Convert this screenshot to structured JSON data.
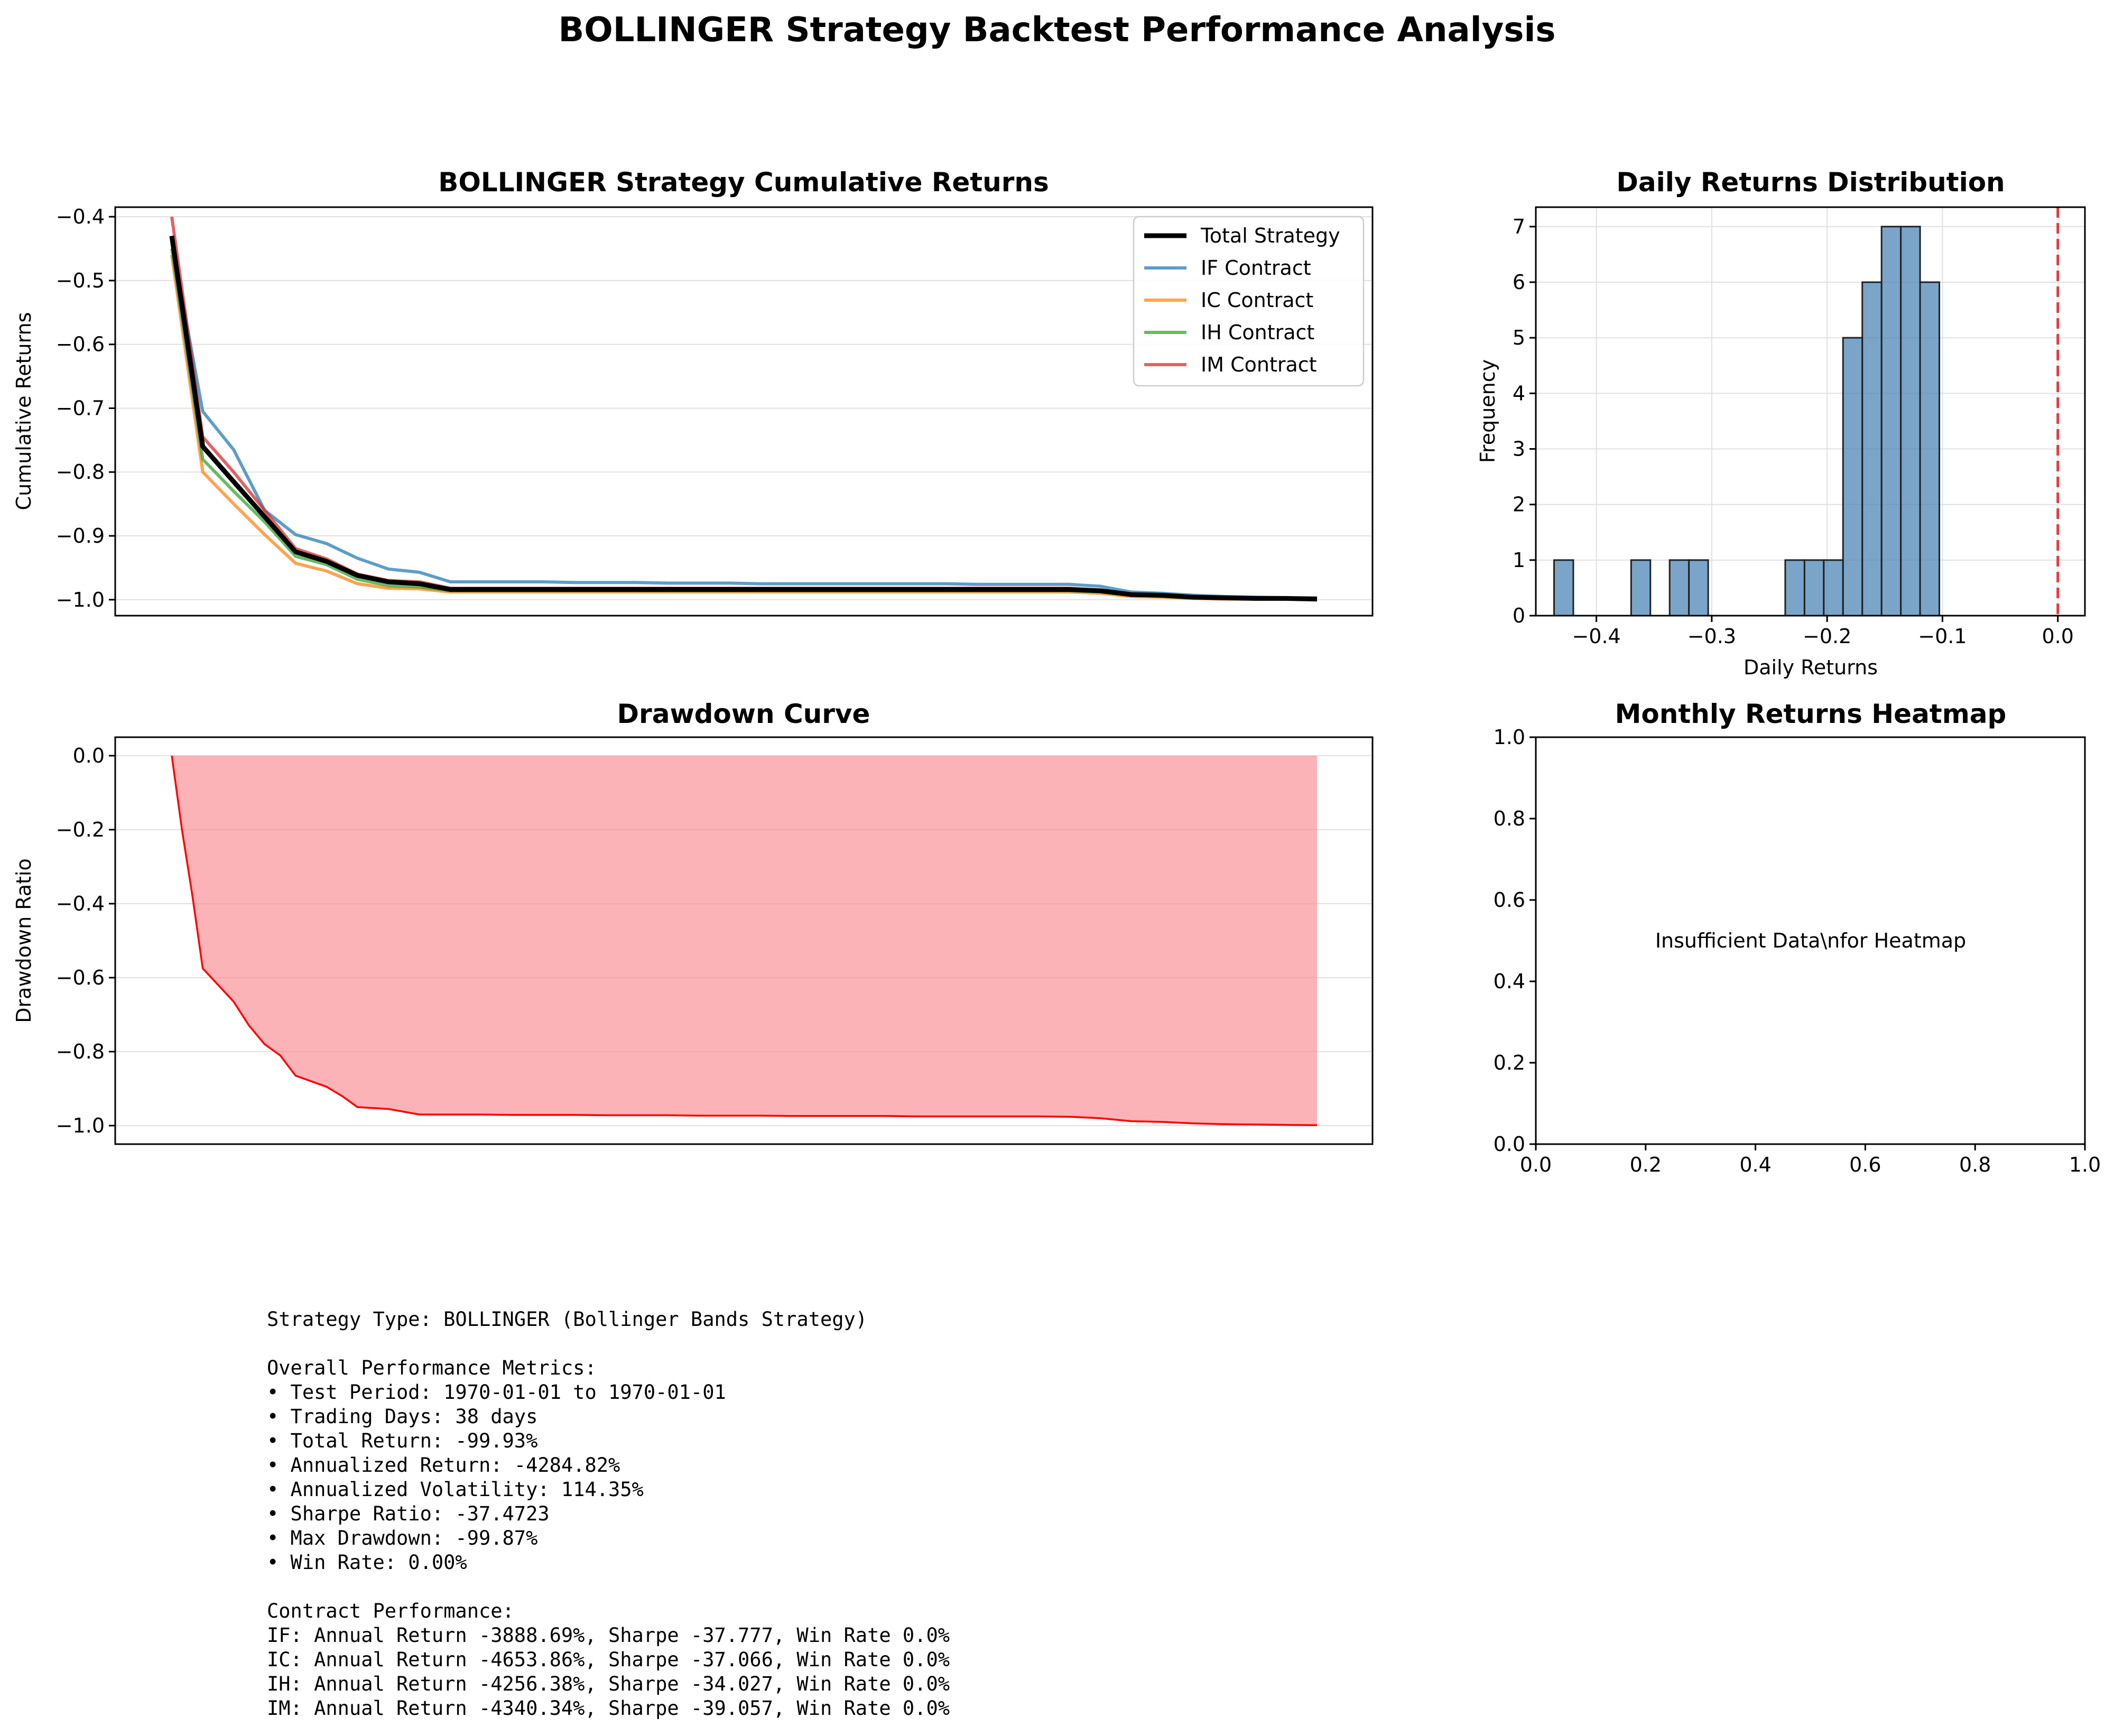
{
  "figure": {
    "title": "BOLLINGER Strategy Backtest Performance Analysis"
  },
  "chart_data": [
    {
      "id": "cumulative",
      "type": "line",
      "title": "BOLLINGER Strategy Cumulative Returns",
      "xlabel": "",
      "ylabel": "Cumulative Returns",
      "ylim": [
        -1.025,
        -0.385
      ],
      "yticks": [
        -0.4,
        -0.5,
        -0.6,
        -0.7,
        -0.8,
        -0.9,
        -1.0
      ],
      "ytick_labels": [
        "−0.4",
        "−0.5",
        "−0.6",
        "−0.7",
        "−0.8",
        "−0.9",
        "−1.0"
      ],
      "grid": "y",
      "legend_position": "upper right",
      "x": [
        0,
        1,
        2,
        3,
        4,
        5,
        6,
        7,
        8,
        9,
        10,
        11,
        12,
        13,
        14,
        15,
        16,
        17,
        18,
        19,
        20,
        21,
        22,
        23,
        24,
        25,
        26,
        27,
        28,
        29,
        30,
        31,
        32,
        33,
        34,
        35,
        36,
        37
      ],
      "series": [
        {
          "name": "Total Strategy",
          "color": "#000000",
          "values": [
            -0.43,
            -0.76,
            -0.815,
            -0.87,
            -0.925,
            -0.94,
            -0.962,
            -0.972,
            -0.975,
            -0.984,
            -0.984,
            -0.984,
            -0.984,
            -0.984,
            -0.984,
            -0.984,
            -0.984,
            -0.984,
            -0.984,
            -0.984,
            -0.984,
            -0.984,
            -0.984,
            -0.984,
            -0.984,
            -0.984,
            -0.984,
            -0.984,
            -0.984,
            -0.984,
            -0.986,
            -0.992,
            -0.993,
            -0.996,
            -0.997,
            -0.998,
            -0.998,
            -0.999
          ]
        },
        {
          "name": "IF Contract",
          "color": "#1f77b4",
          "values": [
            -0.44,
            -0.705,
            -0.765,
            -0.86,
            -0.898,
            -0.912,
            -0.935,
            -0.952,
            -0.957,
            -0.972,
            -0.972,
            -0.972,
            -0.972,
            -0.973,
            -0.973,
            -0.973,
            -0.974,
            -0.974,
            -0.974,
            -0.975,
            -0.975,
            -0.975,
            -0.975,
            -0.975,
            -0.975,
            -0.975,
            -0.976,
            -0.976,
            -0.976,
            -0.976,
            -0.979,
            -0.988,
            -0.99,
            -0.993,
            -0.995,
            -0.996,
            -0.997,
            -0.997
          ]
        },
        {
          "name": "IC Contract",
          "color": "#ff7f0e",
          "values": [
            -0.46,
            -0.8,
            -0.85,
            -0.898,
            -0.943,
            -0.955,
            -0.975,
            -0.982,
            -0.983,
            -0.988,
            -0.988,
            -0.988,
            -0.988,
            -0.988,
            -0.988,
            -0.988,
            -0.988,
            -0.988,
            -0.988,
            -0.988,
            -0.988,
            -0.988,
            -0.988,
            -0.988,
            -0.988,
            -0.988,
            -0.988,
            -0.988,
            -0.988,
            -0.988,
            -0.99,
            -0.995,
            -0.996,
            -0.998,
            -0.999,
            -0.999,
            -0.999,
            -0.999
          ]
        },
        {
          "name": "IH Contract",
          "color": "#2ca02c",
          "values": [
            -0.45,
            -0.78,
            -0.83,
            -0.878,
            -0.932,
            -0.945,
            -0.968,
            -0.978,
            -0.98,
            -0.986,
            -0.986,
            -0.986,
            -0.986,
            -0.986,
            -0.986,
            -0.986,
            -0.986,
            -0.986,
            -0.986,
            -0.986,
            -0.986,
            -0.986,
            -0.986,
            -0.986,
            -0.986,
            -0.986,
            -0.986,
            -0.986,
            -0.986,
            -0.986,
            -0.988,
            -0.993,
            -0.995,
            -0.997,
            -0.998,
            -0.998,
            -0.999,
            -0.999
          ]
        },
        {
          "name": "IM Contract",
          "color": "#d62728",
          "values": [
            -0.4,
            -0.745,
            -0.8,
            -0.86,
            -0.92,
            -0.936,
            -0.96,
            -0.97,
            -0.972,
            -0.982,
            -0.982,
            -0.982,
            -0.982,
            -0.982,
            -0.982,
            -0.982,
            -0.982,
            -0.982,
            -0.982,
            -0.982,
            -0.982,
            -0.982,
            -0.982,
            -0.982,
            -0.982,
            -0.982,
            -0.982,
            -0.982,
            -0.982,
            -0.982,
            -0.985,
            -0.991,
            -0.993,
            -0.996,
            -0.997,
            -0.998,
            -0.998,
            -0.999
          ]
        }
      ]
    },
    {
      "id": "distribution",
      "type": "bar",
      "title": "Daily Returns Distribution",
      "xlabel": "Daily Returns",
      "ylabel": "Frequency",
      "xlim": [
        -0.4525,
        0.0235
      ],
      "ylim": [
        0,
        7.35
      ],
      "xticks": [
        -0.4,
        -0.3,
        -0.2,
        -0.1,
        0.0
      ],
      "xtick_labels": [
        "−0.4",
        "−0.3",
        "−0.2",
        "−0.1",
        "0.0"
      ],
      "yticks": [
        0,
        1,
        2,
        3,
        4,
        5,
        6,
        7
      ],
      "ytick_labels": [
        "0",
        "1",
        "2",
        "3",
        "4",
        "5",
        "6",
        "7"
      ],
      "grid": "both",
      "bar_color": "#4682b4",
      "reference_line": {
        "x": 0.0,
        "color": "#e41a1c",
        "style": "dashed"
      },
      "bin_width": 0.0167,
      "bin_starts": [
        -0.4367,
        -0.3699,
        -0.3365,
        -0.3198,
        -0.2363,
        -0.2196,
        -0.2029,
        -0.1862,
        -0.1695,
        -0.1528,
        -0.1361,
        -0.1194
      ],
      "values": [
        1,
        1,
        1,
        1,
        1,
        1,
        1,
        5,
        6,
        7,
        7,
        6
      ]
    },
    {
      "id": "drawdown",
      "type": "area",
      "title": "Drawdown Curve",
      "xlabel": "",
      "ylabel": "Drawdown Ratio",
      "ylim": [
        -1.05,
        0.05
      ],
      "yticks": [
        0.0,
        -0.2,
        -0.4,
        -0.6,
        -0.8,
        -1.0
      ],
      "ytick_labels": [
        "0.0",
        "−0.2",
        "−0.4",
        "−0.6",
        "−0.8",
        "−1.0"
      ],
      "grid": "y",
      "line_color": "#ff0000",
      "fill_color": "#fb8a91",
      "x": [
        0,
        0.33,
        0.67,
        1,
        2,
        2.5,
        3,
        3.5,
        4,
        5,
        5.5,
        6,
        7,
        8,
        9,
        10,
        11,
        12,
        13,
        14,
        15,
        16,
        17,
        18,
        19,
        20,
        21,
        22,
        23,
        24,
        25,
        26,
        27,
        28,
        29,
        30,
        31,
        32,
        33,
        34,
        35,
        36,
        37
      ],
      "values": [
        0,
        -0.2,
        -0.38,
        -0.575,
        -0.665,
        -0.73,
        -0.78,
        -0.81,
        -0.865,
        -0.895,
        -0.92,
        -0.95,
        -0.955,
        -0.97,
        -0.97,
        -0.97,
        -0.971,
        -0.971,
        -0.971,
        -0.972,
        -0.972,
        -0.972,
        -0.973,
        -0.973,
        -0.973,
        -0.974,
        -0.974,
        -0.974,
        -0.974,
        -0.975,
        -0.975,
        -0.975,
        -0.975,
        -0.975,
        -0.976,
        -0.98,
        -0.988,
        -0.99,
        -0.994,
        -0.996,
        -0.997,
        -0.998,
        -0.999
      ]
    },
    {
      "id": "heatmap",
      "type": "heatmap",
      "title": "Monthly Returns Heatmap",
      "xlim": [
        0,
        1
      ],
      "ylim": [
        0,
        1
      ],
      "xticks": [
        0.0,
        0.2,
        0.4,
        0.6,
        0.8,
        1.0
      ],
      "xtick_labels": [
        "0.0",
        "0.2",
        "0.4",
        "0.6",
        "0.8",
        "1.0"
      ],
      "yticks": [
        0.0,
        0.2,
        0.4,
        0.6,
        0.8,
        1.0
      ],
      "ytick_labels": [
        "0.0",
        "0.2",
        "0.4",
        "0.6",
        "0.8",
        "1.0"
      ],
      "note": "Insufficient Data\\nfor Heatmap",
      "values": []
    }
  ],
  "summary": {
    "lines": [
      "Strategy Type: BOLLINGER (Bollinger Bands Strategy)",
      "",
      "Overall Performance Metrics:",
      "• Test Period: 1970-01-01 to 1970-01-01",
      "• Trading Days: 38 days",
      "• Total Return: -99.93%",
      "• Annualized Return: -4284.82%",
      "• Annualized Volatility: 114.35%",
      "• Sharpe Ratio: -37.4723",
      "• Max Drawdown: -99.87%",
      "• Win Rate: 0.00%",
      "",
      "Contract Performance:",
      "IF: Annual Return -3888.69%, Sharpe -37.777, Win Rate 0.0%",
      "IC: Annual Return -4653.86%, Sharpe -37.066, Win Rate 0.0%",
      "IH: Annual Return -4256.38%, Sharpe -34.027, Win Rate 0.0%",
      "IM: Annual Return -4340.34%, Sharpe -39.057, Win Rate 0.0%"
    ]
  }
}
